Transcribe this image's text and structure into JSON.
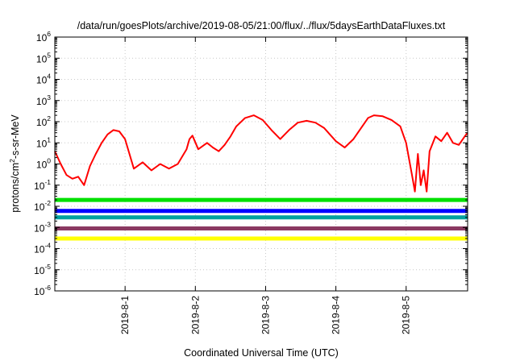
{
  "chart_data": {
    "type": "line",
    "title": "/data/run/goesPlots/archive/2019-08-05/21:00/flux/../flux/5daysEarthDataFluxes.txt",
    "xlabel": "Coordinated Universal Time (UTC)",
    "ylabel": {
      "base": "protons/cm",
      "sup": "2",
      "rest": "-s-sr-MeV"
    },
    "yscale": "log",
    "ylim": [
      1e-06,
      1000000.0
    ],
    "y_ticks": [
      {
        "base": "10",
        "exp": "-6",
        "value": 1e-06
      },
      {
        "base": "10",
        "exp": "-5",
        "value": 1e-05
      },
      {
        "base": "10",
        "exp": "-4",
        "value": 0.0001
      },
      {
        "base": "10",
        "exp": "-3",
        "value": 0.001
      },
      {
        "base": "10",
        "exp": "-2",
        "value": 0.01
      },
      {
        "base": "10",
        "exp": "-1",
        "value": 0.1
      },
      {
        "base": "10",
        "exp": "0",
        "value": 1
      },
      {
        "base": "10",
        "exp": "1",
        "value": 10
      },
      {
        "base": "10",
        "exp": "2",
        "value": 100
      },
      {
        "base": "10",
        "exp": "3",
        "value": 1000
      },
      {
        "base": "10",
        "exp": "4",
        "value": 10000
      },
      {
        "base": "10",
        "exp": "5",
        "value": 100000
      },
      {
        "base": "10",
        "exp": "6",
        "value": 1000000
      }
    ],
    "xlim": [
      "2019-07-31 00:00",
      "2019-08-05 21:00"
    ],
    "x_ticks": [
      {
        "label": "2019-8-1",
        "value": "2019-08-01 00:00"
      },
      {
        "label": "2019-8-2",
        "value": "2019-08-02 00:00"
      },
      {
        "label": "2019-8-3",
        "value": "2019-08-03 00:00"
      },
      {
        "label": "2019-8-4",
        "value": "2019-08-04 00:00"
      },
      {
        "label": "2019-8-5",
        "value": "2019-08-05 00:00"
      }
    ],
    "grid": true,
    "series": [
      {
        "color": "#ff0000",
        "x": [
          "2019-07-31 00:00",
          "2019-07-31 02:00",
          "2019-07-31 04:00",
          "2019-07-31 06:00",
          "2019-07-31 08:00",
          "2019-07-31 10:00",
          "2019-07-31 12:00",
          "2019-07-31 14:00",
          "2019-07-31 16:00",
          "2019-07-31 18:00",
          "2019-07-31 20:00",
          "2019-07-31 22:00",
          "2019-08-01 00:00",
          "2019-08-01 03:00",
          "2019-08-01 06:00",
          "2019-08-01 09:00",
          "2019-08-01 12:00",
          "2019-08-01 15:00",
          "2019-08-01 18:00",
          "2019-08-01 21:00",
          "2019-08-01 22:00",
          "2019-08-01 23:00",
          "2019-08-02 01:00",
          "2019-08-02 04:00",
          "2019-08-02 06:00",
          "2019-08-02 08:00",
          "2019-08-02 10:00",
          "2019-08-02 12:00",
          "2019-08-02 14:00",
          "2019-08-02 17:00",
          "2019-08-02 20:00",
          "2019-08-02 23:00",
          "2019-08-03 02:00",
          "2019-08-03 05:00",
          "2019-08-03 08:00",
          "2019-08-03 11:00",
          "2019-08-03 14:00",
          "2019-08-03 17:00",
          "2019-08-03 20:00",
          "2019-08-04 00:00",
          "2019-08-04 03:00",
          "2019-08-04 06:00",
          "2019-08-04 09:00",
          "2019-08-04 11:00",
          "2019-08-04 13:00",
          "2019-08-04 16:00",
          "2019-08-04 19:00",
          "2019-08-04 22:00",
          "2019-08-05 00:00",
          "2019-08-05 02:00",
          "2019-08-05 03:00",
          "2019-08-05 04:00",
          "2019-08-05 05:00",
          "2019-08-05 06:00",
          "2019-08-05 07:00",
          "2019-08-05 08:00",
          "2019-08-05 10:00",
          "2019-08-05 12:00",
          "2019-08-05 14:00",
          "2019-08-05 16:00",
          "2019-08-05 18:00",
          "2019-08-05 20:00",
          "2019-08-05 21:00"
        ],
        "y": [
          4,
          1,
          0.3,
          0.2,
          0.25,
          0.1,
          0.8,
          3,
          10,
          25,
          40,
          35,
          15,
          0.6,
          1.2,
          0.5,
          1,
          0.6,
          1,
          5,
          15,
          22,
          5,
          10,
          6,
          4,
          8,
          20,
          60,
          150,
          200,
          120,
          40,
          15,
          40,
          90,
          110,
          90,
          50,
          12,
          6,
          15,
          60,
          150,
          200,
          180,
          120,
          60,
          10,
          0.3,
          0.05,
          3,
          0.1,
          0.5,
          0.05,
          4,
          20,
          12,
          30,
          10,
          8,
          20,
          30
        ]
      },
      {
        "color": "#00e000",
        "x": [
          "2019-07-31 00:00",
          "2019-08-05 21:00"
        ],
        "y": [
          0.02,
          0.02
        ]
      },
      {
        "color": "#0000ff",
        "x": [
          "2019-07-31 00:00",
          "2019-08-05 21:00"
        ],
        "y": [
          0.006,
          0.006
        ]
      },
      {
        "color": "#00a0a0",
        "x": [
          "2019-07-31 00:00",
          "2019-08-05 21:00"
        ],
        "y": [
          0.003,
          0.003
        ]
      },
      {
        "color": "#8b3a62",
        "x": [
          "2019-07-31 00:00",
          "2019-08-05 21:00"
        ],
        "y": [
          0.0009,
          0.0009
        ]
      },
      {
        "color": "#ffff00",
        "x": [
          "2019-07-31 00:00",
          "2019-08-05 21:00"
        ],
        "y": [
          0.0003,
          0.0003
        ]
      }
    ]
  }
}
